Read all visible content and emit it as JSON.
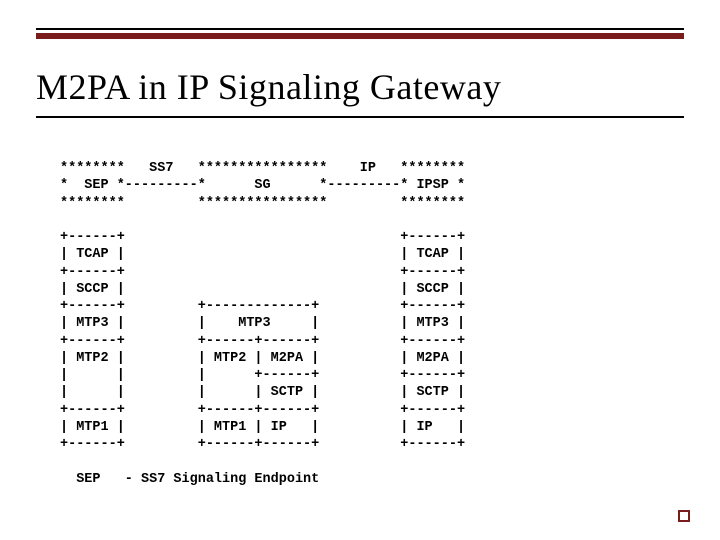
{
  "title": "M2PA in IP Signaling Gateway",
  "colors": {
    "accent": "#7a1c1c",
    "text": "#000000",
    "background": "#ffffff"
  },
  "diagram_lines": [
    "********   SS7   ****************    IP   ********",
    "*  SEP *---------*      SG      *---------* IPSP *",
    "********         ****************         ********",
    "",
    "+------+                                  +------+",
    "| TCAP |                                  | TCAP |",
    "+------+                                  +------+",
    "| SCCP |                                  | SCCP |",
    "+------+         +-------------+          +------+",
    "| MTP3 |         |    MTP3     |          | MTP3 |",
    "+------+         +------+------+          +------+",
    "| MTP2 |         | MTP2 | M2PA |          | M2PA |",
    "|      |         |      +------+          +------+",
    "|      |         |      | SCTP |          | SCTP |",
    "+------+         +------+------+          +------+",
    "| MTP1 |         | MTP1 | IP   |          | IP   |",
    "+------+         +------+------+          +------+",
    "",
    "  SEP   - SS7 Signaling Endpoint"
  ]
}
